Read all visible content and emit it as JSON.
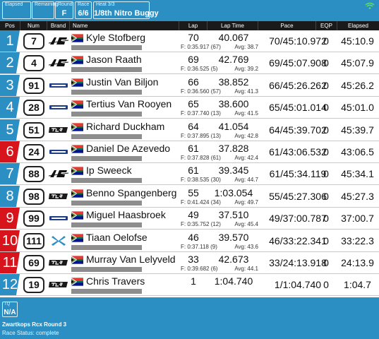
{
  "topbar": {
    "elapsed_caption": "Elapsed",
    "elapsed_value": "",
    "remaining_caption": "Remaining",
    "round_caption": "Round",
    "round_value": "F",
    "race_caption": "Race",
    "race_value": "6/6",
    "heat_caption": "Heat 3/3",
    "heat_value": "1/8th Nitro Buggy",
    "wifi_icon": "wifi-icon",
    "wifi_color": "#5ee05e"
  },
  "headers": {
    "pos": "Pos",
    "num": "Num",
    "brand": "Brand",
    "name": "Name",
    "lap": "Lap",
    "lap_time": "Lap Time",
    "pace": "Pace",
    "eqp": "EQP",
    "elapsed": "Elapsed"
  },
  "colors": {
    "accent_blue": "#2b8fc4",
    "accent_red": "#d7141b",
    "header_black": "#1a1a1a"
  },
  "rows": [
    {
      "pos": "1",
      "pos_color": "blue",
      "num": "7",
      "brand": "agr-logo",
      "flag": "south-africa-flag",
      "name": "Kyle Stofberg",
      "laps": "70",
      "lap_time": "40.067",
      "best": "F: 0:35.917 (67)",
      "avg": "Avg: 38.7",
      "pace": "70/45:10.972",
      "eqp": "0",
      "elapsed": "45:10.9"
    },
    {
      "pos": "2",
      "pos_color": "blue",
      "num": "4",
      "brand": "agr-logo",
      "flag": "south-africa-flag",
      "name": "Jason Raath",
      "laps": "69",
      "lap_time": "42.769",
      "best": "F: 0:36.525 (5)",
      "avg": "Avg: 39.2",
      "pace": "69/45:07.908",
      "eqp": "0",
      "elapsed": "45:07.9"
    },
    {
      "pos": "3",
      "pos_color": "blue",
      "num": "91",
      "brand": "mugen-logo",
      "flag": "south-africa-flag",
      "name": "Justin Van Biljon",
      "laps": "66",
      "lap_time": "38.852",
      "best": "F: 0:36.560 (57)",
      "avg": "Avg: 41.3",
      "pace": "66/45:26.262",
      "eqp": "0",
      "elapsed": "45:26.2"
    },
    {
      "pos": "4",
      "pos_color": "blue",
      "num": "28",
      "brand": "mugen-logo",
      "flag": "south-africa-flag",
      "name": "Tertius Van Rooyen",
      "laps": "65",
      "lap_time": "38.600",
      "best": "F: 0:37.740 (13)",
      "avg": "Avg: 41.5",
      "pace": "65/45:01.014",
      "eqp": "0",
      "elapsed": "45:01.0"
    },
    {
      "pos": "5",
      "pos_color": "blue",
      "num": "51",
      "brand": "tlr-logo",
      "flag": "south-africa-flag",
      "name": "Richard Duckham",
      "laps": "64",
      "lap_time": "41.054",
      "best": "F: 0:37.895 (13)",
      "avg": "Avg: 42.8",
      "pace": "64/45:39.702",
      "eqp": "0",
      "elapsed": "45:39.7"
    },
    {
      "pos": "6",
      "pos_color": "red",
      "num": "24",
      "brand": "mugen-logo",
      "flag": "south-africa-flag",
      "name": "Daniel De Azevedo",
      "laps": "61",
      "lap_time": "37.828",
      "best": "F: 0:37.828 (61)",
      "avg": "Avg: 42.4",
      "pace": "61/43:06.532",
      "eqp": "0",
      "elapsed": "43:06.5"
    },
    {
      "pos": "7",
      "pos_color": "blue",
      "num": "88",
      "brand": "agr-logo",
      "flag": "south-africa-flag",
      "name": "Ip Sweeck",
      "laps": "61",
      "lap_time": "39.345",
      "best": "F: 0:38.535 (30)",
      "avg": "Avg: 44.7",
      "pace": "61/45:34.119",
      "eqp": "0",
      "elapsed": "45:34.1"
    },
    {
      "pos": "8",
      "pos_color": "blue",
      "num": "98",
      "brand": "tlr-logo",
      "flag": "south-africa-flag",
      "name": "Benno Spangenberg",
      "laps": "55",
      "lap_time": "1:03.054",
      "best": "F: 0:41.424 (34)",
      "avg": "Avg: 49.7",
      "pace": "55/45:27.306",
      "eqp": "0",
      "elapsed": "45:27.3"
    },
    {
      "pos": "9",
      "pos_color": "red",
      "num": "99",
      "brand": "mugen-logo",
      "flag": "south-africa-flag",
      "name": "Miguel Haasbroek",
      "laps": "49",
      "lap_time": "37.510",
      "best": "F: 0:35.752 (12)",
      "avg": "Avg: 45.4",
      "pace": "49/37:00.787",
      "eqp": "0",
      "elapsed": "37:00.7"
    },
    {
      "pos": "10",
      "pos_color": "red",
      "num": "111",
      "brand": "xray-logo",
      "flag": "south-africa-flag",
      "name": "Tiaan Oelofse",
      "laps": "46",
      "lap_time": "39.570",
      "best": "F: 0:37.118 (9)",
      "avg": "Avg: 43.6",
      "pace": "46/33:22.341",
      "eqp": "0",
      "elapsed": "33:22.3"
    },
    {
      "pos": "11",
      "pos_color": "red",
      "num": "69",
      "brand": "tlr-logo",
      "flag": "south-africa-flag",
      "name": "Murray Van Lelyveld",
      "laps": "33",
      "lap_time": "42.673",
      "best": "F: 0:39.682 (6)",
      "avg": "Avg: 44.1",
      "pace": "33/24:13.918",
      "eqp": "0",
      "elapsed": "24:13.9"
    },
    {
      "pos": "12",
      "pos_color": "blue",
      "num": "19",
      "brand": "tlr-logo",
      "flag": "south-africa-flag",
      "name": "Chris Travers",
      "laps": "1",
      "lap_time": "1:04.740",
      "best": "",
      "avg": "",
      "pace": "1/1:04.740",
      "eqp": "0",
      "elapsed": "1:04.7"
    }
  ],
  "footer": {
    "tq_caption": "TQ",
    "tq_value": "N/A",
    "event_name": "Zwartkops Rcx Round 3",
    "race_status": "Race Status: complete"
  }
}
